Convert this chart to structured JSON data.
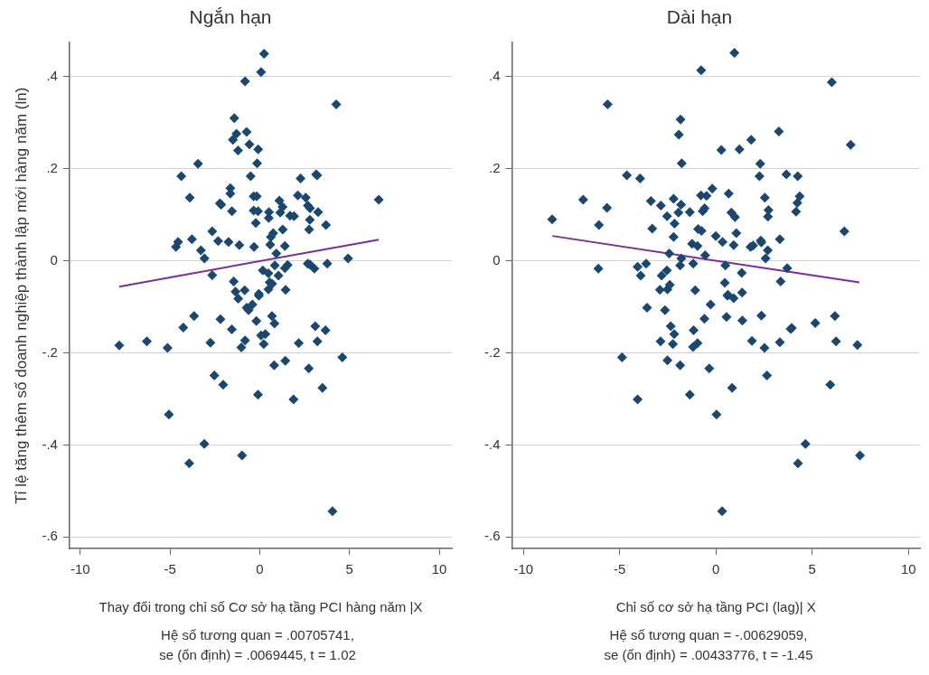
{
  "chart_data": [
    {
      "type": "scatter",
      "title": "Ngắn hạn",
      "xlabel": "Thay đổi trong chỉ số Cơ sở hạ tầng PCI hàng năm |X",
      "ylabel": "Tỉ lệ tăng thêm số doanh nghiệp thành lập mới hàng năm (ln)",
      "annotations": [
        "Hệ số tương quan = .00705741,",
        "se (ổn định) = .0069445, t = 1.02"
      ],
      "xlim": [
        -10.6,
        10.7
      ],
      "ylim": [
        -0.625,
        0.474
      ],
      "xticks": [
        -10,
        -5,
        0,
        5,
        10
      ],
      "yticks": [
        {
          "value": -0.6,
          "label": "-.6"
        },
        {
          "value": -0.4,
          "label": "-.4"
        },
        {
          "value": -0.2,
          "label": "-.2"
        },
        {
          "value": 0,
          "label": "0"
        },
        {
          "value": 0.2,
          "label": ".2"
        },
        {
          "value": 0.4,
          "label": ".4"
        }
      ],
      "grid": "y",
      "legend": false,
      "series": [
        {
          "marker": "diamond",
          "color": "#1a476f",
          "x": [
            0.24,
            0.07,
            -0.82,
            4.26,
            -1.42,
            -0.73,
            -1.3,
            -1.5,
            -0.58,
            -1.21,
            -0.09,
            -0.15,
            -3.44,
            -4.37,
            -0.51,
            2.27,
            3.14,
            3.2,
            -1.64,
            -1.64,
            -3.9,
            -0.34,
            -0.17,
            2.12,
            2.56,
            1.09,
            1.27,
            -2.22,
            -2.15,
            -1.55,
            -0.34,
            -0.1,
            0.51,
            1.14,
            2.68,
            2.8,
            3.25,
            1.69,
            1.91,
            0.5,
            2.79,
            -0.22,
            3.69,
            2.75,
            1.28,
            0.75,
            0.62,
            -2.65,
            6.63,
            -3.78,
            -4.55,
            -4.67,
            -2.32,
            -1.74,
            -1.14,
            -0.32,
            0.58,
            1.4,
            -3.28,
            -3.08,
            0.92,
            4.92,
            0.84,
            2.67,
            2.8,
            3.76,
            3.04,
            1.55,
            1.4,
            0.17,
            0.48,
            1.04,
            -2.65,
            -1.45,
            0.55,
            0.69,
            0.48,
            1.44,
            -1.35,
            -0.84,
            -0.05,
            -7.83,
            -6.29,
            -5.14,
            -4.26,
            -3.66,
            -2.75,
            -2.19,
            -1.56,
            -1.2,
            -0.05,
            -0.73,
            -0.41,
            -0.62,
            -0.19,
            0.68,
            0.82,
            -0.82,
            -1.03,
            0.07,
            0.31,
            0.22,
            2.17,
            3.09,
            3.66,
            3.21,
            4.6,
            0.8,
            1.42,
            2.73,
            -2.53,
            -2.04,
            -0.1,
            1.88,
            3.49,
            -5.06,
            -3.09,
            -3.93,
            -0.99,
            4.05
          ],
          "values": [
            0.45,
            0.41,
            0.39,
            0.34,
            0.31,
            0.28,
            0.276,
            0.263,
            0.253,
            0.24,
            0.242,
            0.212,
            0.211,
            0.184,
            0.184,
            0.179,
            0.188,
            0.186,
            0.158,
            0.146,
            0.137,
            0.14,
            0.14,
            0.142,
            0.137,
            0.131,
            0.117,
            0.125,
            0.122,
            0.108,
            0.109,
            0.108,
            0.106,
            0.105,
            0.12,
            0.114,
            0.106,
            0.098,
            0.097,
            0.093,
            0.089,
            0.082,
            0.078,
            0.068,
            0.068,
            0.06,
            0.052,
            0.064,
            0.133,
            0.047,
            0.041,
            0.03,
            0.043,
            0.041,
            0.034,
            0.03,
            0.035,
            0.032,
            0.023,
            0.005,
            0.016,
            0.005,
            -0.01,
            -0.006,
            -0.008,
            -0.006,
            -0.017,
            -0.009,
            -0.016,
            -0.021,
            -0.027,
            -0.032,
            -0.031,
            -0.045,
            -0.047,
            -0.05,
            -0.062,
            -0.063,
            -0.067,
            -0.064,
            -0.072,
            -0.184,
            -0.175,
            -0.189,
            -0.145,
            -0.12,
            -0.178,
            -0.127,
            -0.149,
            -0.082,
            -0.076,
            -0.102,
            -0.095,
            -0.107,
            -0.131,
            -0.12,
            -0.136,
            -0.173,
            -0.188,
            -0.162,
            -0.159,
            -0.181,
            -0.179,
            -0.142,
            -0.151,
            -0.175,
            -0.21,
            -0.227,
            -0.217,
            -0.234,
            -0.249,
            -0.269,
            -0.291,
            -0.301,
            -0.276,
            -0.334,
            -0.398,
            -0.44,
            -0.423,
            -0.544
          ]
        },
        {
          "type": "line",
          "marker": "none",
          "color": "#7b2d9a",
          "x": [
            -7.83,
            6.63
          ],
          "values": [
            -0.056,
            0.046
          ]
        }
      ]
    },
    {
      "type": "scatter",
      "title": "Dài hạn",
      "xlabel": "Chỉ số cơ sở hạ tầng PCI (lag)| X",
      "annotations": [
        "Hệ số tương quan = -.00629059,",
        "se (ổn định) = .00433776, t = -1.45"
      ],
      "xlim": [
        -10.6,
        10.6
      ],
      "ylim": [
        -0.625,
        0.474
      ],
      "xticks": [
        -10,
        -5,
        0,
        5,
        10
      ],
      "yticks": [
        {
          "value": -0.6,
          "label": "-.6"
        },
        {
          "value": -0.4,
          "label": "-.4"
        },
        {
          "value": -0.2,
          "label": "-.2"
        },
        {
          "value": 0,
          "label": "0"
        },
        {
          "value": 0.2,
          "label": ".2"
        },
        {
          "value": 0.4,
          "label": ".4"
        }
      ],
      "grid": "y",
      "legend": false,
      "series": [
        {
          "marker": "diamond",
          "color": "#1a476f",
          "x": [
            0.96,
            -0.77,
            6.02,
            -5.63,
            -1.84,
            -1.93,
            3.27,
            1.83,
            7.0,
            0.28,
            1.22,
            -1.78,
            2.3,
            2.26,
            3.66,
            4.25,
            -4.63,
            -3.94,
            -0.19,
            -0.78,
            -0.49,
            0.66,
            2.54,
            4.35,
            4.23,
            4.16,
            -6.9,
            -5.66,
            -3.38,
            -2.86,
            -2.2,
            -1.81,
            -2.54,
            -1.95,
            -1.36,
            -0.69,
            -0.59,
            0.8,
            0.99,
            2.73,
            2.7,
            -8.51,
            -6.08,
            -2.15,
            -3.31,
            -0.93,
            -0.75,
            1.06,
            6.67,
            -2.2,
            -0.01,
            -1.24,
            -0.96,
            0.34,
            0.92,
            1.8,
            1.93,
            2.33,
            2.36,
            3.32,
            2.69,
            -2.43,
            -0.56,
            -1.8,
            2.58,
            -6.11,
            -4.07,
            -3.63,
            -3.91,
            -2.55,
            -2.82,
            -1.86,
            -1.18,
            0.49,
            1.34,
            3.7,
            3.36,
            0.46,
            -2.4,
            -2.91,
            -2.52,
            -1.08,
            1.36,
            0.62,
            0.6,
            0.92,
            -3.58,
            -2.65,
            -0.28,
            -0.6,
            0.55,
            1.37,
            2.36,
            5.16,
            6.18,
            3.94,
            3.88,
            -2.35,
            -2.17,
            -2.88,
            -2.24,
            -1.16,
            -0.96,
            -1.19,
            1.87,
            2.52,
            3.32,
            6.24,
            7.35,
            -4.88,
            -2.52,
            -1.86,
            -0.35,
            2.65,
            5.94,
            0.84,
            -4.07,
            -1.36,
            0.03,
            4.65,
            4.26,
            7.48,
            0.32
          ],
          "values": [
            0.452,
            0.414,
            0.388,
            0.34,
            0.307,
            0.274,
            0.281,
            0.263,
            0.252,
            0.241,
            0.242,
            0.212,
            0.211,
            0.184,
            0.188,
            0.184,
            0.186,
            0.179,
            0.157,
            0.142,
            0.141,
            0.146,
            0.137,
            0.14,
            0.126,
            0.107,
            0.133,
            0.115,
            0.13,
            0.12,
            0.135,
            0.122,
            0.097,
            0.105,
            0.106,
            0.108,
            0.114,
            0.105,
            0.095,
            0.11,
            0.096,
            0.09,
            0.078,
            0.081,
            0.07,
            0.069,
            0.065,
            0.06,
            0.064,
            0.052,
            0.054,
            0.037,
            0.032,
            0.041,
            0.034,
            0.03,
            0.033,
            0.044,
            0.04,
            0.047,
            0.023,
            0.016,
            0.012,
            0.005,
            0.005,
            -0.017,
            -0.013,
            -0.006,
            -0.032,
            -0.021,
            -0.032,
            -0.01,
            -0.006,
            -0.01,
            -0.026,
            -0.016,
            -0.045,
            -0.048,
            -0.052,
            -0.063,
            -0.062,
            -0.064,
            -0.069,
            -0.074,
            -0.076,
            -0.081,
            -0.102,
            -0.107,
            -0.095,
            -0.126,
            -0.122,
            -0.13,
            -0.119,
            -0.135,
            -0.12,
            -0.146,
            -0.148,
            -0.142,
            -0.159,
            -0.175,
            -0.181,
            -0.151,
            -0.179,
            -0.187,
            -0.174,
            -0.189,
            -0.177,
            -0.175,
            -0.183,
            -0.21,
            -0.216,
            -0.227,
            -0.234,
            -0.249,
            -0.269,
            -0.276,
            -0.301,
            -0.291,
            -0.334,
            -0.398,
            -0.44,
            -0.423,
            -0.544
          ]
        },
        {
          "type": "line",
          "marker": "none",
          "color": "#7b2d9a",
          "x": [
            -8.5,
            7.45
          ],
          "values": [
            0.054,
            -0.047
          ]
        }
      ]
    }
  ]
}
